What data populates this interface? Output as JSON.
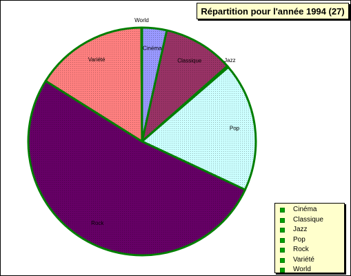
{
  "chart_data": {
    "type": "pie",
    "title": "Répartition pour l'année 1994 (27)",
    "categories": [
      "Cinéma",
      "Classique",
      "Jazz",
      "Pop",
      "Rock",
      "Variété",
      "World"
    ],
    "values": [
      3.5,
      10,
      0.2,
      18.3,
      52,
      16,
      0.1
    ],
    "colors": [
      "#9999ff",
      "#993366",
      "#339933",
      "#ccffff",
      "#660066",
      "#ff8080",
      "#cccccc"
    ],
    "slice_border_color": "#008000",
    "legend_position": "bottom-right",
    "legend_swatch_color": "#00a000",
    "legend_background": "#ffffcc"
  }
}
